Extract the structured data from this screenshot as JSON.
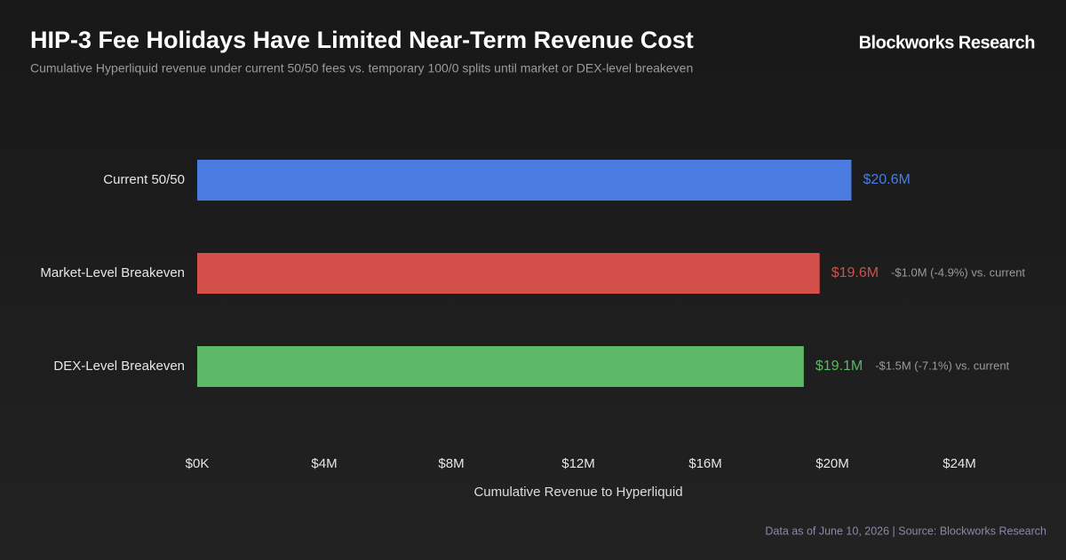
{
  "chart_data": {
    "type": "hbar",
    "title": "HIP-3 Fee Holidays Have Limited Near-Term Revenue Cost",
    "subtitle": "Cumulative Hyperliquid revenue under current 50/50 fees vs. temporary 100/0 splits until market or DEX-level breakeven",
    "brand": "Blockworks Research",
    "footer": "Data as of June 10, 2026 | Source: Blockworks Research",
    "x_label": "Cumulative Revenue to Hyperliquid",
    "categories": [
      "Current 50/50",
      "Market-Level Breakeven",
      "DEX-Level Breakeven"
    ],
    "values": [
      20.6,
      19.6,
      19.1
    ],
    "value_labels": [
      "$20.6M",
      "$19.6M",
      "$19.1M"
    ],
    "colors": [
      "#4a7be0",
      "#d24f4a",
      "#5cb866"
    ],
    "annotations": [
      null,
      "-$1.0M (-4.9%) vs. current",
      "-$1.5M (-7.1%) vs. current"
    ],
    "xlim": [
      0,
      24
    ],
    "xticks": [
      {
        "value": 0,
        "label": "$0K"
      },
      {
        "value": 4,
        "label": "$4M"
      },
      {
        "value": 8,
        "label": "$8M"
      },
      {
        "value": 12,
        "label": "$12M"
      },
      {
        "value": 16,
        "label": "$16M"
      },
      {
        "value": 20,
        "label": "$20M"
      },
      {
        "value": 24,
        "label": "$24M"
      }
    ]
  }
}
